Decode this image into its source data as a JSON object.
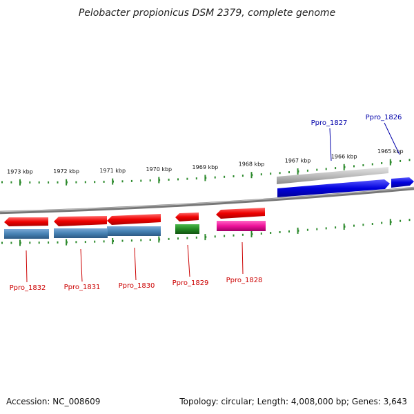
{
  "title": "Pelobacter propionicus DSM 2379, complete genome",
  "footer": {
    "accession": "Accession: NC_008609",
    "summary": "Topology: circular; Length: 4,008,000 bp; Genes: 3,643"
  },
  "ticks": [
    {
      "label": "1973 kbp",
      "kbp": 1973
    },
    {
      "label": "1972 kbp",
      "kbp": 1972
    },
    {
      "label": "1971 kbp",
      "kbp": 1971
    },
    {
      "label": "1970 kbp",
      "kbp": 1970
    },
    {
      "label": "1969 kbp",
      "kbp": 1969
    },
    {
      "label": "1968 kbp",
      "kbp": 1968
    },
    {
      "label": "1967 kbp",
      "kbp": 1967
    },
    {
      "label": "1966 kbp",
      "kbp": 1966
    },
    {
      "label": "1965 kbp",
      "kbp": 1965
    }
  ],
  "genes": [
    {
      "label": "Ppro_1826",
      "strand": "forward",
      "color": "#0000dd",
      "cds_color": "#c0c0c0",
      "label_color": "#0000aa"
    },
    {
      "label": "Ppro_1827",
      "strand": "forward",
      "color": "#0000dd",
      "cds_color": "#b4b4b4",
      "label_color": "#0000aa"
    },
    {
      "label": "Ppro_1828",
      "strand": "reverse",
      "color": "#ee0000",
      "cds_color": "#ee1199",
      "label_color": "#cc0000"
    },
    {
      "label": "Ppro_1829",
      "strand": "reverse",
      "color": "#ee0000",
      "cds_color": "#228822",
      "label_color": "#cc0000"
    },
    {
      "label": "Ppro_1830",
      "strand": "reverse",
      "color": "#ee0000",
      "cds_color": "#4682b4",
      "label_color": "#cc0000"
    },
    {
      "label": "Ppro_1831",
      "strand": "reverse",
      "color": "#ee0000",
      "cds_color": "#4682b4",
      "label_color": "#cc0000"
    },
    {
      "label": "Ppro_1832",
      "strand": "reverse",
      "color": "#ee0000",
      "cds_color": "#4682b4",
      "label_color": "#cc0000"
    }
  ],
  "colors": {
    "backbone": "#8a8a8a",
    "tick_marks": "#2e8b2e"
  }
}
